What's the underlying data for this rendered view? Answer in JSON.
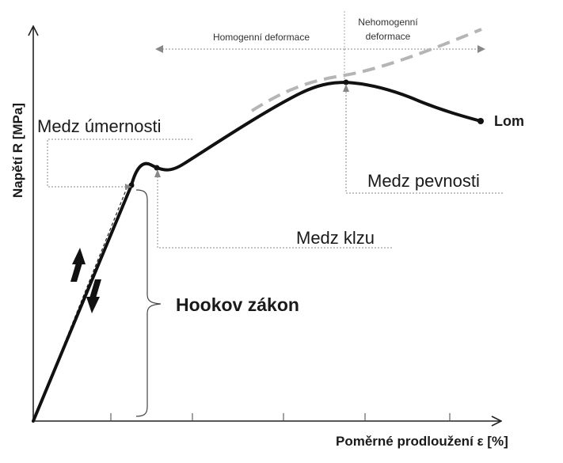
{
  "axes": {
    "y_label": "Napětí R [MPa]",
    "x_label": "Poměrné prodloužení ε [%]"
  },
  "regions": {
    "homogeneous": "Homogenní deformace",
    "inhomogeneous_line1": "Nehomogenní",
    "inhomogeneous_line2": "deformace"
  },
  "labels": {
    "proportional_limit": "Medz úmernosti",
    "yield_point": "Medz klzu",
    "tensile_strength": "Medz pevnosti",
    "fracture": "Lom",
    "hookes_law": "Hookov zákon"
  },
  "colors": {
    "curve": "#111111",
    "true_stress_curve": "#b5b5b5",
    "leader_lines": "#7a7a7a"
  }
}
